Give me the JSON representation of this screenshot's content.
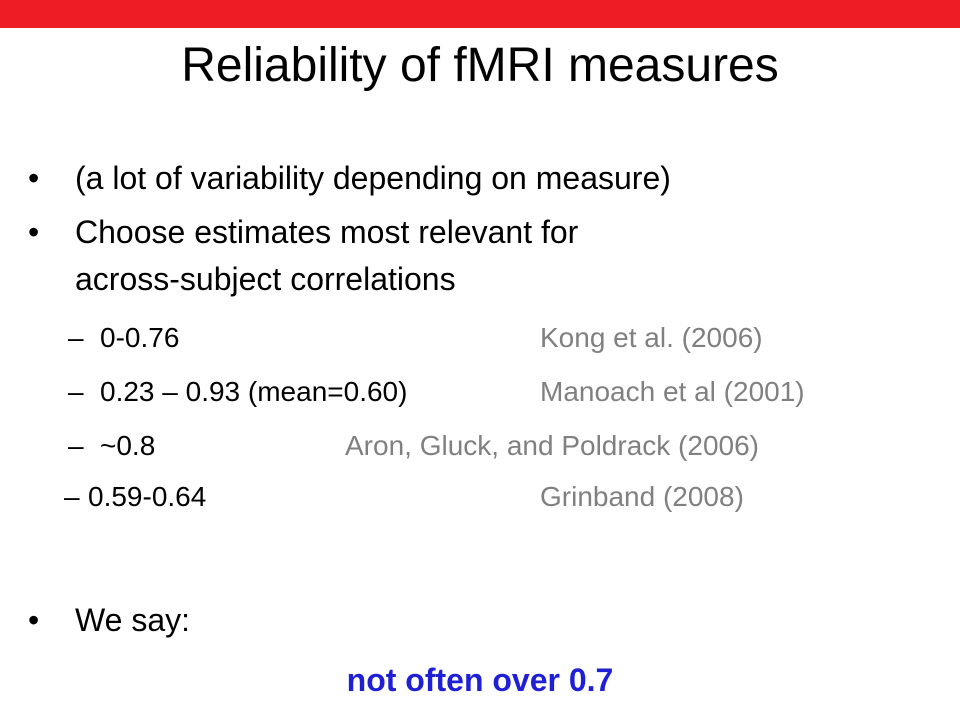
{
  "slide": {
    "title": "Reliability of fMRI measures",
    "bullets": [
      {
        "lines": [
          "(a lot of variability depending on measure)"
        ]
      },
      {
        "lines": [
          "Choose estimates most relevant for",
          "across-subject correlations"
        ]
      }
    ],
    "dash": "–",
    "sub_items": [
      {
        "value": "0-0.76",
        "source": "Kong et al. (2006)"
      },
      {
        "value": "0.23 – 0.93 (mean=0.60)",
        "source": "Manoach et al (2001)"
      },
      {
        "value": "~0.8",
        "source": "Aron, Gluck, and Poldrack (2006)"
      },
      {
        "value": "0.59-0.64",
        "source": "Grinband (2008)"
      }
    ],
    "final_bullet": "We say:",
    "conclusion": "not often over 0.7"
  }
}
